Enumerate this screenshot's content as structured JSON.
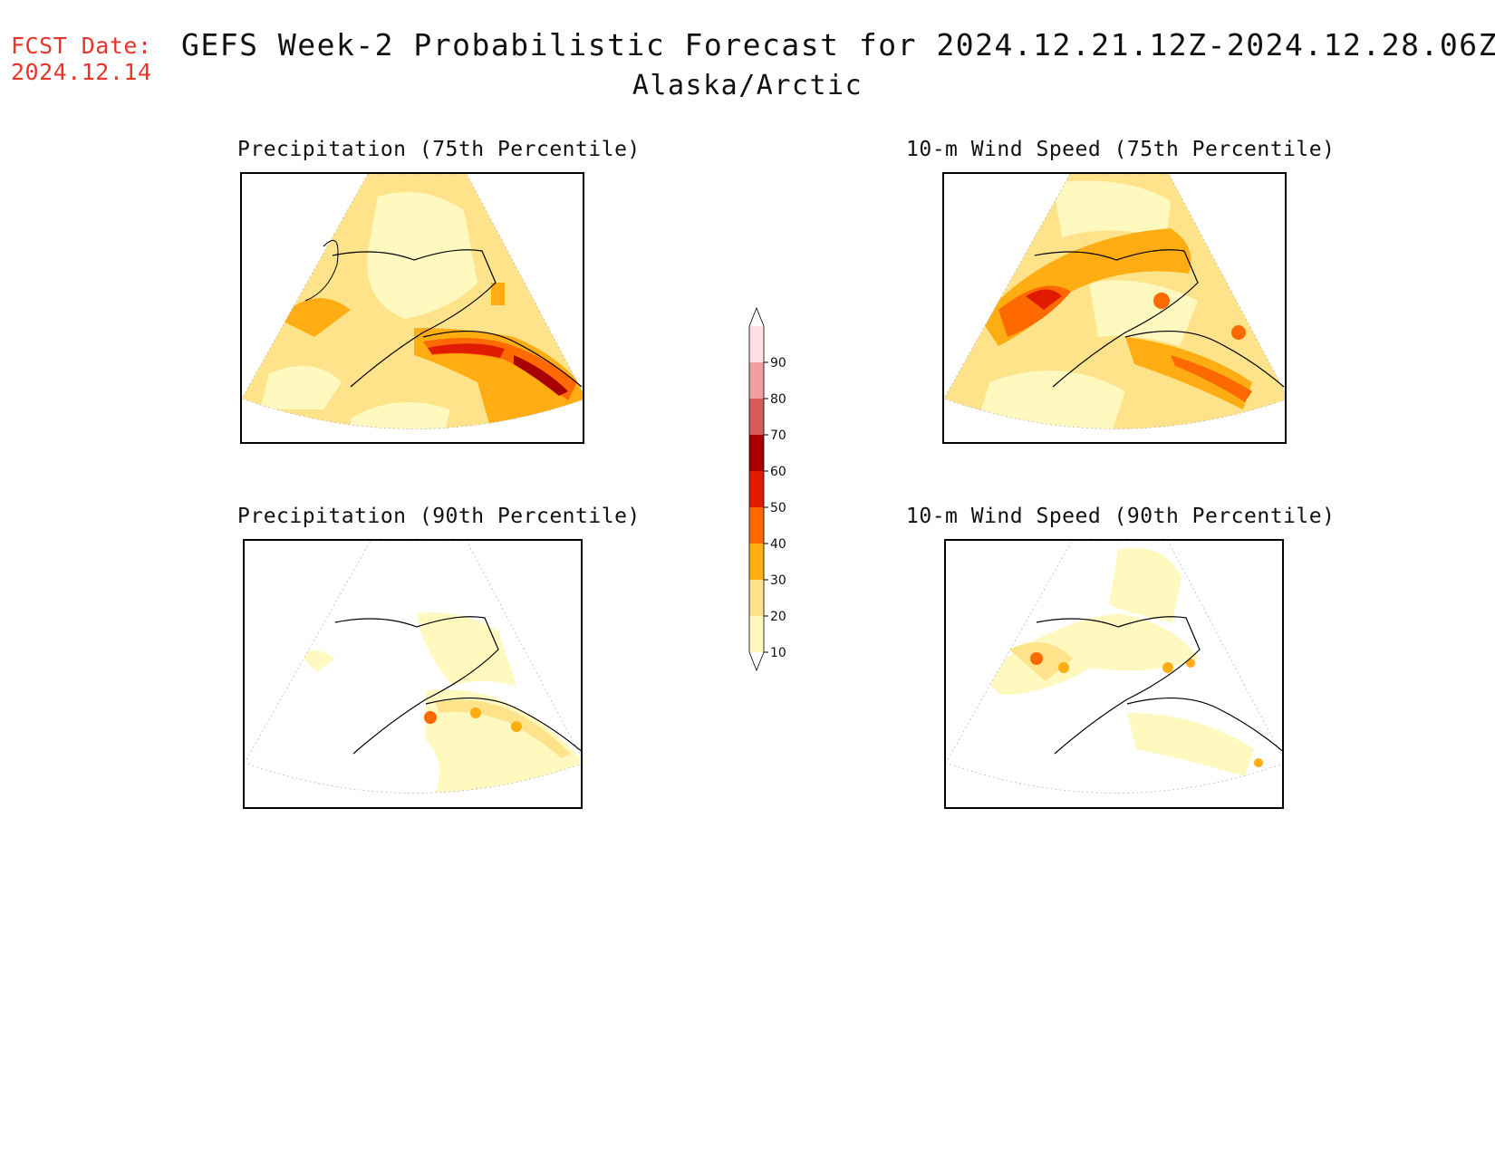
{
  "header": {
    "fcst_label": "FCST Date:",
    "fcst_date": "2024.12.14",
    "title": "GEFS Week-2 Probabilistic Forecast for 2024.12.21.12Z-2024.12.28.06Z",
    "subtitle": "Alaska/Arctic"
  },
  "panels": {
    "precip75": {
      "title": "Precipitation (75th Percentile)"
    },
    "wind75": {
      "title": "10-m Wind Speed (75th Percentile)"
    },
    "precip90": {
      "title": "Precipitation (90th Percentile)"
    },
    "wind90": {
      "title": "10-m Wind Speed (90th Percentile)"
    }
  },
  "colorbar": {
    "levels": [
      "10",
      "20",
      "30",
      "40",
      "50",
      "60",
      "70",
      "80",
      "90"
    ],
    "colors": [
      "#fff9c0",
      "#ffe38a",
      "#ffad13",
      "#ff6a00",
      "#e01b00",
      "#a80000",
      "#d95b5b",
      "#f0a0a0",
      "#fde0e6"
    ]
  }
}
